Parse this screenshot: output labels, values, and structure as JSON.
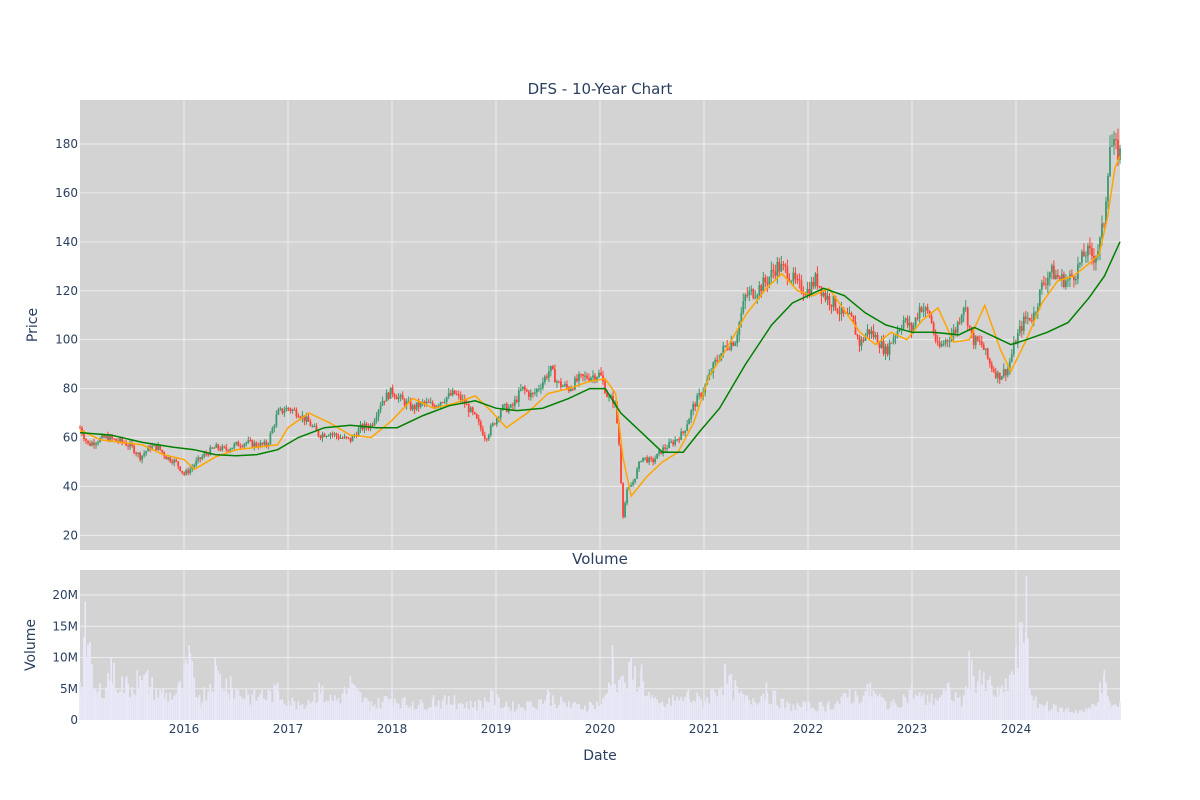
{
  "chart_data": [
    {
      "type": "candlestick",
      "title": "DFS - 10-Year Chart",
      "ylabel": "Price",
      "ylim": [
        14,
        198
      ],
      "xlim": [
        2015.0,
        2025.0
      ],
      "yticks": [
        20,
        40,
        60,
        80,
        100,
        120,
        140,
        160,
        180
      ],
      "colors": {
        "increasing": "#3d9970",
        "decreasing": "#ff4136",
        "ma_short": "#ffa500",
        "ma_long": "#008000",
        "bg": "#d3d3d3"
      },
      "series": [
        {
          "name": "",
          "role": "close",
          "x": [
            2015.0,
            2015.08,
            2015.17,
            2015.25,
            2015.33,
            2015.42,
            2015.5,
            2015.58,
            2015.67,
            2015.75,
            2015.83,
            2015.92,
            2016.0,
            2016.06,
            2016.12,
            2016.2,
            2016.3,
            2016.4,
            2016.5,
            2016.6,
            2016.7,
            2016.8,
            2016.9,
            2017.0,
            2017.1,
            2017.2,
            2017.3,
            2017.4,
            2017.5,
            2017.6,
            2017.7,
            2017.8,
            2017.9,
            2018.0,
            2018.1,
            2018.2,
            2018.3,
            2018.4,
            2018.5,
            2018.6,
            2018.7,
            2018.8,
            2018.9,
            2018.97,
            2019.05,
            2019.15,
            2019.25,
            2019.35,
            2019.45,
            2019.52,
            2019.6,
            2019.7,
            2019.8,
            2019.9,
            2020.0,
            2020.08,
            2020.14,
            2020.18,
            2020.22,
            2020.26,
            2020.32,
            2020.4,
            2020.5,
            2020.6,
            2020.7,
            2020.8,
            2020.9,
            2021.0,
            2021.1,
            2021.2,
            2021.3,
            2021.4,
            2021.5,
            2021.6,
            2021.7,
            2021.8,
            2021.9,
            2022.0,
            2022.08,
            2022.16,
            2022.25,
            2022.33,
            2022.42,
            2022.5,
            2022.58,
            2022.67,
            2022.75,
            2022.83,
            2022.92,
            2023.0,
            2023.08,
            2023.17,
            2023.25,
            2023.33,
            2023.42,
            2023.5,
            2023.58,
            2023.67,
            2023.75,
            2023.83,
            2023.92,
            2024.0,
            2024.08,
            2024.17,
            2024.25,
            2024.33,
            2024.42,
            2024.5,
            2024.58,
            2024.67,
            2024.75,
            2024.8,
            2024.85,
            2024.9,
            2024.95,
            2025.0
          ],
          "values": [
            64,
            57,
            59,
            60,
            59,
            58,
            56,
            52,
            56,
            56,
            52,
            50,
            45,
            47,
            50,
            53,
            56,
            55,
            57,
            58,
            57,
            57,
            70,
            72,
            70,
            66,
            61,
            62,
            60,
            59,
            64,
            65,
            75,
            79,
            75,
            72,
            74,
            73,
            76,
            78,
            74,
            68,
            60,
            65,
            72,
            72,
            80,
            77,
            83,
            88,
            82,
            80,
            84,
            85,
            86,
            76,
            75,
            60,
            28,
            38,
            42,
            52,
            50,
            55,
            58,
            62,
            73,
            80,
            90,
            97,
            100,
            118,
            120,
            124,
            130,
            128,
            122,
            120,
            125,
            118,
            115,
            110,
            108,
            98,
            104,
            100,
            95,
            102,
            108,
            104,
            114,
            110,
            96,
            100,
            104,
            115,
            100,
            98,
            90,
            85,
            88,
            100,
            108,
            110,
            122,
            128,
            125,
            124,
            128,
            136,
            134,
            138,
            150,
            180,
            178,
            176
          ]
        },
        {
          "name": "",
          "role": "moving-average-short",
          "x": [
            2015.0,
            2015.2,
            2015.4,
            2015.6,
            2015.8,
            2016.0,
            2016.1,
            2016.3,
            2016.5,
            2016.7,
            2016.9,
            2017.0,
            2017.2,
            2017.4,
            2017.6,
            2017.8,
            2018.0,
            2018.2,
            2018.4,
            2018.6,
            2018.8,
            2018.95,
            2019.1,
            2019.3,
            2019.5,
            2019.7,
            2019.9,
            2020.05,
            2020.15,
            2020.22,
            2020.3,
            2020.45,
            2020.6,
            2020.75,
            2020.9,
            2021.05,
            2021.2,
            2021.4,
            2021.6,
            2021.75,
            2021.9,
            2022.05,
            2022.2,
            2022.35,
            2022.5,
            2022.65,
            2022.8,
            2022.95,
            2023.1,
            2023.25,
            2023.4,
            2023.55,
            2023.7,
            2023.85,
            2023.95,
            2024.1,
            2024.25,
            2024.4,
            2024.55,
            2024.7,
            2024.8,
            2024.88,
            2024.95,
            2025.0
          ],
          "values": [
            63,
            59,
            58,
            57,
            53,
            51,
            47,
            52,
            55,
            56,
            57,
            64,
            70,
            66,
            61,
            60,
            67,
            76,
            72,
            74,
            77,
            71,
            64,
            70,
            78,
            80,
            83,
            84,
            78,
            52,
            36,
            44,
            50,
            54,
            66,
            85,
            95,
            110,
            121,
            127,
            120,
            118,
            121,
            112,
            103,
            98,
            103,
            100,
            108,
            113,
            99,
            100,
            114,
            96,
            87,
            100,
            115,
            124,
            126,
            131,
            135,
            150,
            170,
            175
          ]
        },
        {
          "name": "",
          "role": "moving-average-long",
          "x": [
            2015.0,
            2015.3,
            2015.6,
            2015.9,
            2016.1,
            2016.3,
            2016.5,
            2016.7,
            2016.9,
            2017.1,
            2017.35,
            2017.6,
            2017.85,
            2018.05,
            2018.3,
            2018.55,
            2018.8,
            2019.0,
            2019.2,
            2019.45,
            2019.7,
            2019.9,
            2020.05,
            2020.2,
            2020.4,
            2020.6,
            2020.8,
            2020.95,
            2021.15,
            2021.4,
            2021.65,
            2021.85,
            2022.0,
            2022.15,
            2022.35,
            2022.55,
            2022.75,
            2023.0,
            2023.2,
            2023.45,
            2023.6,
            2023.8,
            2023.95,
            2024.1,
            2024.3,
            2024.5,
            2024.7,
            2024.85,
            2025.0
          ],
          "values": [
            62,
            61,
            58,
            56,
            55,
            53,
            52.5,
            53,
            55,
            60,
            64,
            65,
            64,
            64,
            69,
            73,
            75,
            72,
            71,
            72,
            76,
            80,
            80,
            70,
            62,
            54,
            54,
            62,
            72,
            90,
            106,
            115,
            118,
            121,
            118,
            111,
            106,
            103,
            103,
            102,
            105,
            101,
            98,
            100,
            103,
            107,
            117,
            126,
            140
          ]
        }
      ]
    },
    {
      "type": "bar",
      "title": "Volume",
      "xlabel": "Date",
      "ylabel": "Volume",
      "ylim": [
        0,
        24
      ],
      "unit": "M",
      "ytick_labels": [
        "0",
        "5M",
        "10M",
        "15M",
        "20M"
      ],
      "yticks": [
        0,
        5,
        10,
        15,
        20
      ],
      "xtick_labels": [
        "2016",
        "2017",
        "2018",
        "2019",
        "2020",
        "2021",
        "2022",
        "2023",
        "2024"
      ],
      "xticks": [
        2016,
        2017,
        2018,
        2019,
        2020,
        2021,
        2022,
        2023,
        2024
      ],
      "colors": {
        "bar": "#e8e8f8",
        "bg": "#d3d3d3"
      },
      "series": [
        {
          "name": "",
          "x": [
            2015.0,
            2015.05,
            2015.15,
            2015.3,
            2015.45,
            2015.55,
            2015.65,
            2015.8,
            2015.95,
            2016.05,
            2016.15,
            2016.3,
            2016.45,
            2016.6,
            2016.75,
            2016.9,
            2017.1,
            2017.3,
            2017.45,
            2017.6,
            2017.8,
            2018.0,
            2018.2,
            2018.4,
            2018.6,
            2018.8,
            2018.95,
            2019.1,
            2019.3,
            2019.5,
            2019.7,
            2019.9,
            2020.05,
            2020.12,
            2020.2,
            2020.3,
            2020.4,
            2020.5,
            2020.6,
            2020.7,
            2020.85,
            2021.0,
            2021.2,
            2021.4,
            2021.6,
            2021.8,
            2022.0,
            2022.2,
            2022.4,
            2022.6,
            2022.8,
            2023.0,
            2023.15,
            2023.35,
            2023.5,
            2023.55,
            2023.65,
            2023.75,
            2023.85,
            2024.0,
            2024.1,
            2024.15,
            2024.3,
            2024.5,
            2024.7,
            2024.85,
            2024.9,
            2025.0
          ],
          "values": [
            6,
            19,
            5,
            10,
            7,
            8,
            8,
            5,
            6,
            12,
            4,
            10,
            7,
            5,
            5,
            6,
            3,
            6,
            4,
            7,
            3,
            5,
            3,
            4,
            4,
            3,
            5,
            3,
            3,
            5,
            3,
            3,
            4,
            12,
            7,
            10,
            9,
            4,
            3,
            4,
            5,
            4,
            9,
            4,
            6,
            3,
            3,
            3,
            5,
            6,
            3,
            6,
            4,
            6,
            4,
            11,
            8,
            7,
            5,
            12,
            23,
            4,
            3,
            2,
            2,
            8,
            3,
            3
          ]
        }
      ]
    }
  ]
}
